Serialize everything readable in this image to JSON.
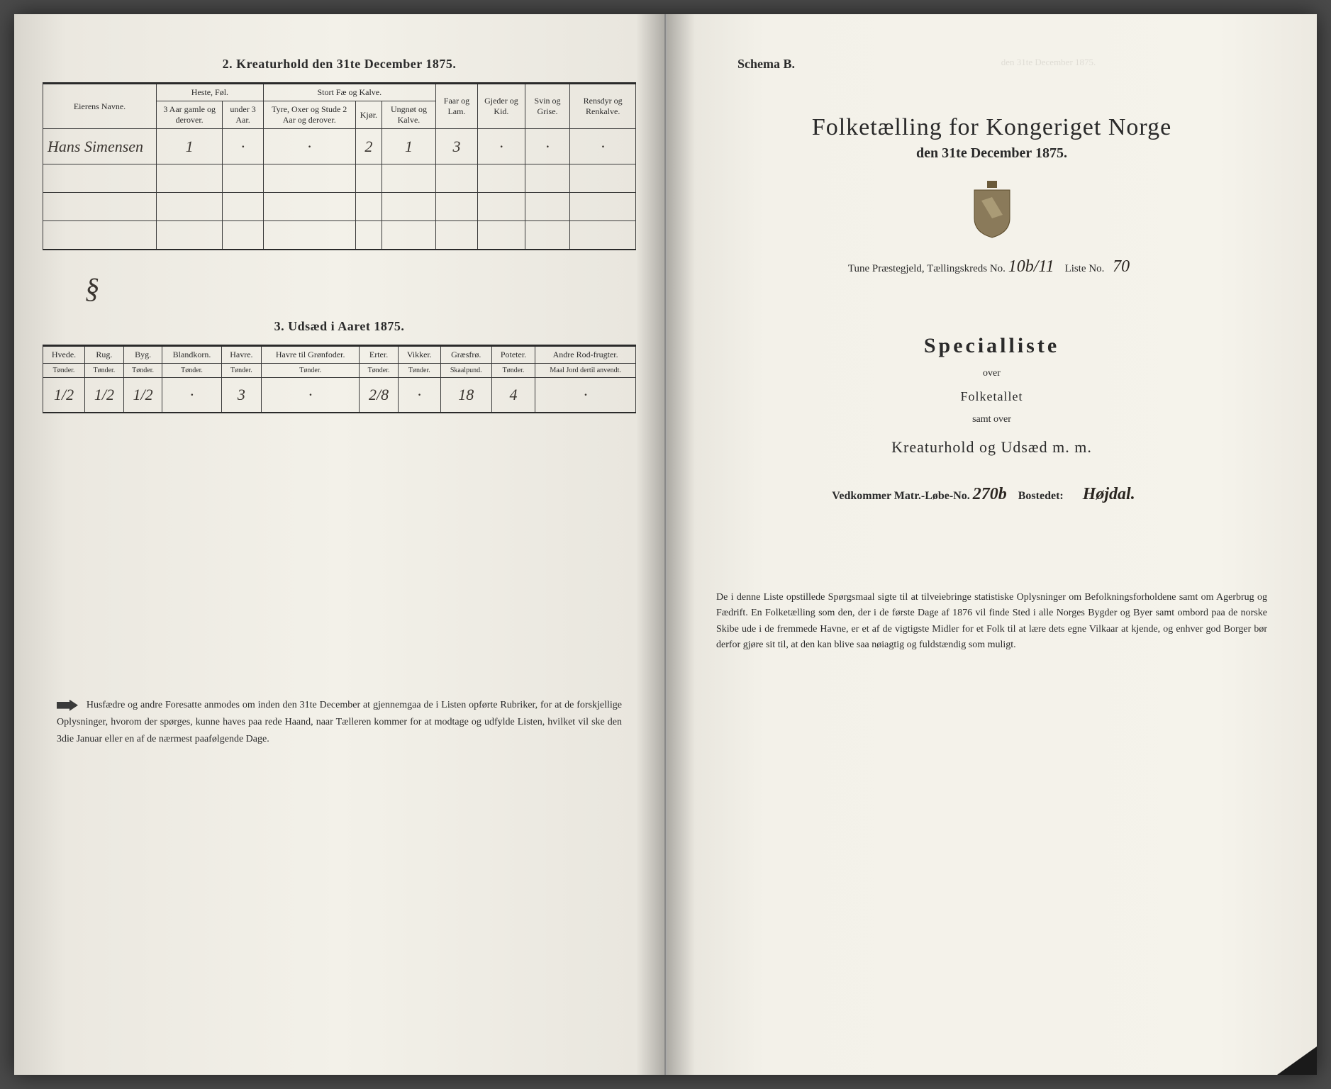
{
  "left": {
    "section2_title": "2.  Kreaturhold den 31te December 1875.",
    "table2": {
      "name_header": "Eierens Navne.",
      "groups": [
        {
          "label": "Heste, Føl.",
          "cols": [
            "3 Aar gamle og derover.",
            "under 3 Aar."
          ]
        },
        {
          "label": "Stort Fæ og Kalve.",
          "cols": [
            "Tyre, Oxer og Stude 2 Aar og derover.",
            "Kjør.",
            "Ungnøt og Kalve."
          ]
        }
      ],
      "single_cols": [
        "Faar og Lam.",
        "Gjeder og Kid.",
        "Svin og Grise.",
        "Rensdyr og Renkalve."
      ],
      "owner": "Hans Simensen",
      "values": [
        "1",
        "·",
        "·",
        "2",
        "1",
        "3",
        "·",
        "·",
        "·"
      ]
    },
    "section3_title": "3.  Udsæd i Aaret 1875.",
    "table3": {
      "headers": [
        {
          "h": "Hvede.",
          "s": "Tønder."
        },
        {
          "h": "Rug.",
          "s": "Tønder."
        },
        {
          "h": "Byg.",
          "s": "Tønder."
        },
        {
          "h": "Blandkorn.",
          "s": "Tønder."
        },
        {
          "h": "Havre.",
          "s": "Tønder."
        },
        {
          "h": "Havre til Grønfoder.",
          "s": "Tønder."
        },
        {
          "h": "Erter.",
          "s": "Tønder."
        },
        {
          "h": "Vikker.",
          "s": "Tønder."
        },
        {
          "h": "Græsfrø.",
          "s": "Skaalpund."
        },
        {
          "h": "Poteter.",
          "s": "Tønder."
        },
        {
          "h": "Andre Rod-frugter.",
          "s": "Maal Jord dertil anvendt."
        }
      ],
      "values": [
        "1/2",
        "1/2",
        "1/2",
        "·",
        "3",
        "·",
        "2/8",
        "·",
        "18",
        "4",
        "·"
      ]
    },
    "mark": "§",
    "bottom_text": "Husfædre og andre Foresatte anmodes om inden den 31te December at gjennemgaa de i Listen opførte Rubriker, for at de forskjellige Oplysninger, hvorom der spørges, kunne haves paa rede Haand, naar Tælleren kommer for at modtage og udfylde Listen, hvilket vil ske den 3die Januar eller en af de nærmest paafølgende Dage."
  },
  "right": {
    "schema": "Schema B.",
    "ghost_title": "den 31te December 1875.",
    "title_main": "Folketælling for Kongeriget Norge",
    "title_sub": "den 31te December 1875.",
    "district_prefix": "Tune Præstegjeld,  Tællingskreds No.",
    "district_no": "10b/11",
    "liste_label": "Liste No.",
    "liste_no": "70",
    "spec_title": "Specialliste",
    "spec_over": "over",
    "spec_folketallet": "Folketallet",
    "spec_samt": "samt over",
    "spec_kreatur": "Kreaturhold og Udsæd m. m.",
    "vedkommer_label": "Vedkommer Matr.-Løbe-No.",
    "matr_no": "270b",
    "bostedet_label": "Bostedet:",
    "bostedet": "Højdal.",
    "bottom_text": "De i denne Liste opstillede Spørgsmaal sigte til at tilveiebringe statistiske Oplysninger om Befolkningsforholdene samt om Agerbrug og Fædrift.  En Folketælling som den, der i de første Dage af 1876 vil finde Sted i alle Norges Bygder og Byer samt ombord paa de norske Skibe ude i de fremmede Havne, er et af de vigtigste Midler for et Folk til at lære dets egne Vilkaar at kjende, og enhver god Borger bør derfor gjøre sit til, at den kan blive saa nøiagtig og fuldstændig som muligt."
  }
}
